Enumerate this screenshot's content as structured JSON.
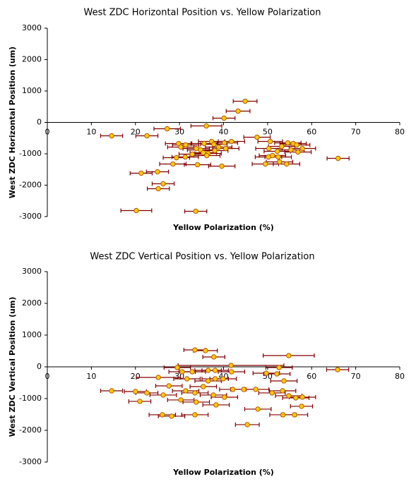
{
  "chart_data": [
    {
      "type": "scatter",
      "title": "West ZDC Horizontal Position vs. Yellow Polarization",
      "xlabel": "Yellow Polarization  (%)",
      "ylabel": "West ZDC Horizontal Position  (um)",
      "xlim": [
        0,
        80
      ],
      "ylim": [
        -3000,
        3000
      ],
      "xticks": [
        0,
        10,
        20,
        30,
        40,
        50,
        60,
        70,
        80
      ],
      "yticks": [
        -3000,
        -2000,
        -1000,
        0,
        1000,
        2000,
        3000
      ],
      "marker_color": "#ffcc00",
      "marker_edge": "#b35900",
      "errorbar_color": "#800000",
      "series": [
        {
          "x": [
            44.9,
            43.3,
            40.1,
            36.1,
            27.2,
            22.6,
            14.6,
            47.6,
            50.6,
            66.0,
            21.3,
            25.0,
            26.3,
            25.2,
            20.2,
            33.7,
            29.8,
            30.3,
            31.4,
            35.6,
            37.3,
            37.8,
            40.2,
            41.8,
            33.8,
            34.8,
            38.0,
            36.5,
            32.9,
            31.3,
            29.3,
            28.5,
            34.1,
            39.6,
            38.9,
            40.5,
            50.3,
            51.1,
            52.2,
            53.2,
            54.6,
            55.8,
            56.6,
            57.9,
            56.9,
            50.2,
            52.4,
            52.7,
            54.3,
            55.3,
            49.5,
            36.2,
            35.4
          ],
          "values": [
            674,
            360,
            135,
            -112,
            -202,
            -427,
            -427,
            -472,
            -607,
            -1146,
            -1618,
            -1573,
            -1955,
            -2112,
            -2809,
            -2831,
            -674,
            -787,
            -719,
            -674,
            -607,
            -697,
            -652,
            -607,
            -832,
            -876,
            -899,
            -989,
            -1011,
            -1101,
            -1124,
            -1326,
            -1348,
            -1393,
            -787,
            -832,
            -832,
            -1056,
            -921,
            -764,
            -652,
            -674,
            -719,
            -832,
            -944,
            -1101,
            -1101,
            -1258,
            -1326,
            -876,
            -1326,
            -1056,
            -966
          ],
          "xerr": [
            2.7,
            2.7,
            2.5,
            3.5,
            3.0,
            2.5,
            2.5,
            3.0,
            2.8,
            2.5,
            2.5,
            2.5,
            2.5,
            2.5,
            3.5,
            2.5,
            3.0,
            3.0,
            3.0,
            3.0,
            3.0,
            3.0,
            3.0,
            3.0,
            3.0,
            3.0,
            3.0,
            3.0,
            3.0,
            3.0,
            3.0,
            3.0,
            3.0,
            3.0,
            3.0,
            3.0,
            3.0,
            3.0,
            3.0,
            3.0,
            3.0,
            3.0,
            3.0,
            3.0,
            3.0,
            3.0,
            3.0,
            3.0,
            3.0,
            3.0,
            3.0,
            3.0,
            3.0
          ]
        }
      ]
    },
    {
      "type": "scatter",
      "title": "West ZDC Vertical Position vs. Yellow Polarization",
      "xlabel": "Yellow Polarization  (%)",
      "ylabel": "West ZDC Vertical Position  (um)",
      "xlim": [
        0,
        80
      ],
      "ylim": [
        -3000,
        3000
      ],
      "xticks": [
        0,
        10,
        20,
        30,
        40,
        50,
        60,
        70,
        80
      ],
      "yticks": [
        -3000,
        -2000,
        -1000,
        0,
        1000,
        2000,
        3000
      ],
      "marker_color": "#ffcc00",
      "marker_edge": "#b35900",
      "errorbar_color": "#800000",
      "series": [
        {
          "x": [
            33.5,
            35.9,
            37.8,
            54.8,
            65.9,
            41.7,
            29.5,
            14.6,
            20.0,
            22.6,
            21.0,
            26.3,
            27.6,
            25.2,
            30.6,
            32.9,
            36.5,
            38.1,
            41.8,
            31.7,
            36.5,
            38.1,
            39.9,
            35.4,
            33.5,
            31.4,
            30.3,
            33.8,
            37.7,
            40.2,
            38.3,
            42.1,
            44.6,
            47.3,
            51.0,
            53.4,
            47.8,
            53.5,
            56.1,
            57.7,
            56.4,
            54.8,
            52.6,
            49.7,
            52.1,
            57.9,
            45.4,
            26.1,
            28.2,
            33.5,
            53.7
          ],
          "values": [
            533,
            511,
            311,
            355,
            -89,
            44,
            -22,
            -755,
            -777,
            -821,
            -1088,
            -888,
            -600,
            -333,
            -155,
            -155,
            -111,
            -111,
            -155,
            -377,
            -444,
            -377,
            -377,
            -622,
            -821,
            -755,
            -1043,
            -1110,
            -888,
            -955,
            -1199,
            -710,
            -710,
            -710,
            -821,
            -755,
            -1332,
            -1510,
            -1510,
            -1243,
            -977,
            -910,
            -22,
            -200,
            -222,
            -955,
            -1821,
            -1510,
            -1554,
            -1510,
            -444
          ],
          "xerr": [
            2.5,
            2.7,
            2.5,
            5.8,
            2.5,
            12.0,
            3.0,
            2.5,
            2.5,
            2.5,
            2.5,
            3.0,
            3.0,
            5.0,
            3.0,
            3.0,
            3.0,
            3.0,
            3.0,
            3.0,
            3.0,
            3.0,
            3.0,
            3.0,
            3.0,
            3.0,
            3.0,
            3.0,
            3.0,
            3.0,
            3.0,
            3.0,
            3.0,
            3.0,
            3.0,
            3.0,
            3.0,
            3.0,
            3.0,
            2.5,
            3.0,
            3.0,
            3.0,
            3.0,
            3.0,
            3.0,
            2.7,
            3.0,
            3.0,
            3.0,
            3.0
          ]
        }
      ]
    }
  ]
}
